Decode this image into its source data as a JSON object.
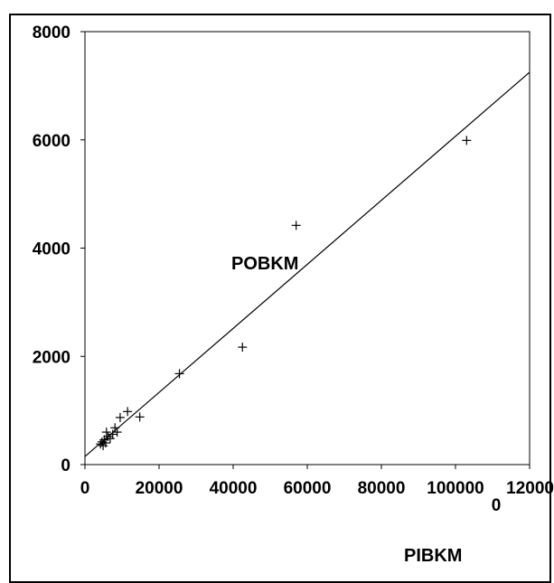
{
  "chart_data": {
    "type": "scatter",
    "xlabel": "PIBKM",
    "ylabel": "POBKM",
    "xlim": [
      0,
      120000
    ],
    "ylim": [
      0,
      8000
    ],
    "x_ticks": [
      0,
      20000,
      40000,
      60000,
      80000,
      100000,
      120000
    ],
    "x_tick_labels": [
      "0",
      "20000",
      "40000",
      "60000",
      "80000",
      "100000",
      "12000\n0"
    ],
    "y_ticks": [
      0,
      2000,
      4000,
      6000,
      8000
    ],
    "y_tick_labels": [
      "0",
      "2000",
      "4000",
      "6000",
      "8000"
    ],
    "grid": false,
    "marker": "+",
    "series": [
      {
        "points": [
          [
            4200,
            380
          ],
          [
            4600,
            420
          ],
          [
            4900,
            350
          ],
          [
            5200,
            460
          ],
          [
            5600,
            400
          ],
          [
            5800,
            600
          ],
          [
            6200,
            520
          ],
          [
            6800,
            480
          ],
          [
            7500,
            560
          ],
          [
            8100,
            680
          ],
          [
            8700,
            600
          ],
          [
            9500,
            870
          ],
          [
            11500,
            980
          ],
          [
            14800,
            880
          ],
          [
            25500,
            1680
          ],
          [
            42500,
            2170
          ],
          [
            57000,
            4420
          ],
          [
            103000,
            5990
          ]
        ]
      }
    ],
    "fit_line": {
      "x": [
        0,
        120000
      ],
      "y": [
        150,
        7250
      ]
    }
  }
}
